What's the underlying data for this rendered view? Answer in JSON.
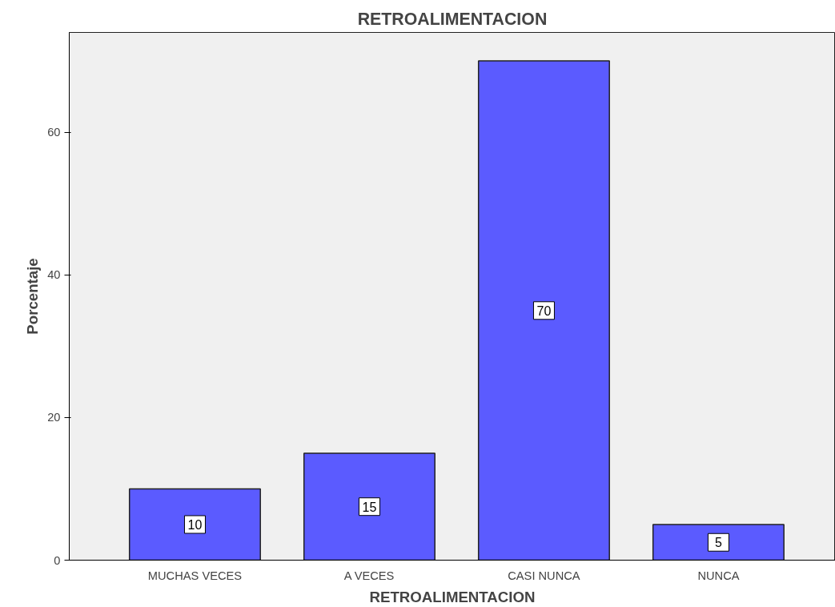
{
  "chart_data": {
    "type": "bar",
    "title": "RETROALIMENTACION",
    "xlabel": "RETROALIMENTACION",
    "ylabel": "Porcentaje",
    "categories": [
      "MUCHAS VECES",
      "A VECES",
      "CASI NUNCA",
      "NUNCA"
    ],
    "values": [
      10,
      15,
      70,
      5
    ],
    "color": "#5b5bff",
    "ylim": [
      0,
      74
    ],
    "yticks": [
      0,
      20,
      40,
      60
    ],
    "grid": false,
    "data_labels": true
  }
}
